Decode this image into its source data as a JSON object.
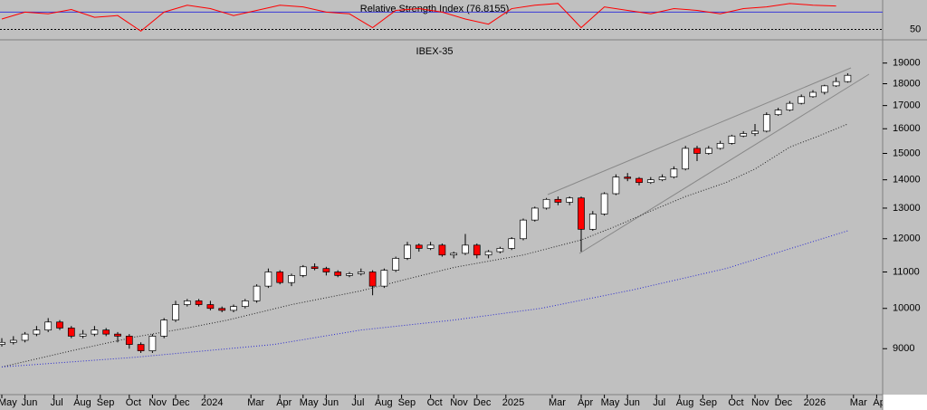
{
  "chart_data": [
    {
      "type": "line",
      "title": "Relative Strength Index (76.8155)",
      "color": "#ff0000",
      "x": [
        0,
        4,
        8,
        12,
        16,
        20,
        24,
        28,
        32,
        36,
        40,
        44,
        48,
        52,
        56,
        60,
        64,
        68,
        72,
        76,
        80,
        84,
        88,
        92,
        96,
        100,
        104,
        108,
        112,
        116,
        120,
        124,
        128,
        132,
        136,
        140,
        144
      ],
      "values": [
        62,
        70,
        68,
        73,
        64,
        66,
        48,
        70,
        78,
        74,
        66,
        72,
        78,
        76,
        70,
        68,
        52,
        72,
        74,
        70,
        62,
        56,
        74,
        78,
        80,
        52,
        76,
        72,
        68,
        74,
        72,
        68,
        74,
        76,
        80,
        78,
        77
      ],
      "ylim": [
        40,
        84
      ],
      "yticks": [
        50
      ],
      "levels": [
        70,
        50
      ],
      "level_color": "#3a3ad8"
    },
    {
      "type": "candlestick",
      "title": "IBEX-35",
      "log_scale": true,
      "up_color": "#ffffff",
      "down_color": "#ff0000",
      "x": [
        0,
        2,
        4,
        6,
        8,
        10,
        12,
        14,
        16,
        18,
        20,
        22,
        24,
        26,
        28,
        30,
        32,
        34,
        36,
        38,
        40,
        42,
        44,
        46,
        48,
        50,
        52,
        54,
        56,
        58,
        60,
        62,
        64,
        66,
        68,
        70,
        72,
        74,
        76,
        78,
        80,
        82,
        84,
        86,
        88,
        90,
        92,
        94,
        96,
        98,
        100,
        102,
        104,
        106,
        108,
        110,
        112,
        114,
        116,
        118,
        120,
        122,
        124,
        126,
        128,
        130,
        132,
        134,
        136,
        138,
        140,
        142,
        144,
        146
      ],
      "open": [
        9100,
        9150,
        9200,
        9350,
        9450,
        9650,
        9500,
        9300,
        9350,
        9450,
        9350,
        9300,
        9100,
        8950,
        9300,
        9700,
        10100,
        10200,
        10100,
        10000,
        9950,
        10050,
        10200,
        10600,
        11000,
        10700,
        10900,
        11150,
        11100,
        11000,
        10900,
        10950,
        11000,
        10600,
        11050,
        11400,
        11800,
        11700,
        11800,
        11500,
        11550,
        11800,
        11500,
        11600,
        11700,
        12000,
        12600,
        13000,
        13300,
        13200,
        13350,
        12300,
        12800,
        13500,
        14100,
        14050,
        13900,
        14000,
        14100,
        14400,
        15200,
        15000,
        15200,
        15400,
        15700,
        15800,
        15900,
        16600,
        16800,
        17100,
        17400,
        17600,
        17900,
        18100
      ],
      "high": [
        9250,
        9300,
        9400,
        9550,
        9750,
        9700,
        9550,
        9450,
        9550,
        9500,
        9400,
        9350,
        9150,
        9350,
        9750,
        10200,
        10250,
        10250,
        10200,
        10050,
        10100,
        10250,
        10650,
        11100,
        11050,
        10950,
        11200,
        11250,
        11150,
        11050,
        11000,
        11100,
        11050,
        11100,
        11450,
        11900,
        11850,
        11900,
        11850,
        11600,
        12150,
        11850,
        11650,
        11750,
        12050,
        12650,
        13050,
        13350,
        13400,
        13400,
        13400,
        12900,
        13550,
        14200,
        14250,
        14100,
        14100,
        14200,
        14500,
        15300,
        15300,
        15300,
        15500,
        15750,
        15900,
        16200,
        16700,
        16900,
        17200,
        17500,
        17700,
        17950,
        18300,
        18500
      ],
      "low": [
        9050,
        9100,
        9150,
        9300,
        9400,
        9450,
        9250,
        9250,
        9300,
        9300,
        9150,
        9000,
        8900,
        8900,
        9250,
        9650,
        10050,
        10050,
        9950,
        9900,
        9900,
        10000,
        10150,
        10550,
        10650,
        10600,
        10850,
        11050,
        10900,
        10850,
        10850,
        10900,
        10350,
        10550,
        11000,
        11350,
        11600,
        11650,
        11450,
        11400,
        11500,
        11400,
        11400,
        11550,
        11650,
        11950,
        12550,
        12950,
        13100,
        13100,
        11600,
        12250,
        12750,
        13450,
        13950,
        13800,
        13850,
        13950,
        14050,
        14350,
        14700,
        14950,
        15150,
        15350,
        15650,
        15700,
        15850,
        16550,
        16750,
        17050,
        17350,
        17500,
        17850,
        18050
      ],
      "close": [
        9150,
        9200,
        9350,
        9450,
        9650,
        9500,
        9300,
        9350,
        9450,
        9350,
        9300,
        9100,
        8950,
        9300,
        9700,
        10100,
        10200,
        10100,
        10000,
        9950,
        10050,
        10200,
        10600,
        11000,
        10700,
        10900,
        11150,
        11100,
        11000,
        10900,
        10950,
        11000,
        10600,
        11050,
        11400,
        11800,
        11700,
        11800,
        11500,
        11550,
        11800,
        11500,
        11600,
        11700,
        12000,
        12600,
        13000,
        13300,
        13200,
        13350,
        12300,
        12800,
        13500,
        14100,
        14050,
        13900,
        14000,
        14100,
        14400,
        15200,
        15000,
        15200,
        15400,
        15700,
        15800,
        15900,
        16600,
        16800,
        17100,
        17400,
        17600,
        17900,
        18100,
        18400
      ],
      "series": [
        {
          "color": "#202020",
          "x": [
            0,
            12,
            23,
            32,
            39,
            50,
            62,
            70,
            78,
            90,
            100,
            106,
            112,
            118,
            125,
            130,
            136,
            141,
            146
          ],
          "values": [
            8580,
            8950,
            9280,
            9500,
            9700,
            10100,
            10470,
            10800,
            11130,
            11500,
            11960,
            12400,
            12900,
            13400,
            13900,
            14400,
            15250,
            15700,
            16200
          ]
        },
        {
          "color": "#2a2ad0",
          "x": [
            0,
            23,
            47,
            62,
            78,
            93,
            109,
            125,
            146
          ],
          "values": [
            8580,
            8800,
            9100,
            9450,
            9700,
            10000,
            10500,
            11100,
            12250
          ]
        }
      ],
      "ylim": [
        8000,
        20000
      ],
      "yticks": [
        9000,
        10000,
        11000,
        12000,
        13000,
        14000,
        15000,
        16000,
        17000,
        18000,
        19000
      ],
      "xticks": [
        {
          "value": 0,
          "label": "May"
        },
        {
          "value": 4,
          "label": "Jun"
        },
        {
          "value": 9,
          "label": "Jul"
        },
        {
          "value": 13,
          "label": "Aug"
        },
        {
          "value": 17,
          "label": "Sep"
        },
        {
          "value": 22,
          "label": "Oct"
        },
        {
          "value": 26,
          "label": "Nov"
        },
        {
          "value": 30,
          "label": "Dec"
        },
        {
          "value": 35,
          "label": "2024"
        },
        {
          "value": 43,
          "label": "Mar"
        },
        {
          "value": 48,
          "label": "Apr"
        },
        {
          "value": 52,
          "label": "May"
        },
        {
          "value": 56,
          "label": "Jun"
        },
        {
          "value": 61,
          "label": "Jul"
        },
        {
          "value": 65,
          "label": "Aug"
        },
        {
          "value": 69,
          "label": "Sep"
        },
        {
          "value": 74,
          "label": "Oct"
        },
        {
          "value": 78,
          "label": "Nov"
        },
        {
          "value": 82,
          "label": "Dec"
        },
        {
          "value": 87,
          "label": "2025"
        },
        {
          "value": 95,
          "label": "Mar"
        },
        {
          "value": 100,
          "label": "Apr"
        },
        {
          "value": 104,
          "label": "May"
        },
        {
          "value": 108,
          "label": "Jun"
        },
        {
          "value": 113,
          "label": "Jul"
        },
        {
          "value": 117,
          "label": "Aug"
        },
        {
          "value": 121,
          "label": "Sep"
        },
        {
          "value": 126,
          "label": "Oct"
        },
        {
          "value": 130,
          "label": "Nov"
        },
        {
          "value": 134,
          "label": "Dec"
        },
        {
          "value": 139,
          "label": "2026"
        },
        {
          "value": 147,
          "label": "Mar"
        },
        {
          "value": 151,
          "label": "Apr"
        }
      ]
    }
  ]
}
